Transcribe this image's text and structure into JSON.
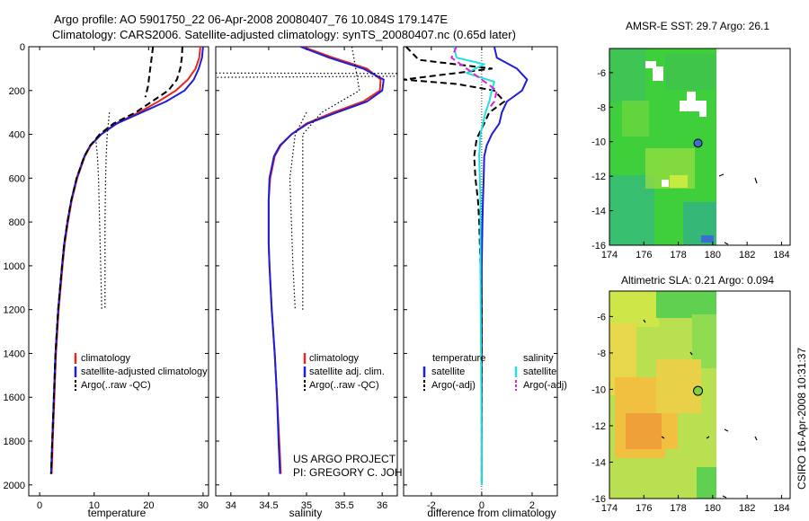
{
  "header": {
    "line1": "Argo profile: AO 5901750_22 06-Apr-2008 20080407_76 10.084S 179.147E",
    "line2": "Climatology: CARS2006. Satellite-adjusted climatology: synTS_20080407.nc (0.65d later)"
  },
  "credits": {
    "project": "US ARGO PROJECT",
    "pi": "PI: GREGORY C. JOHNSON",
    "stamp": "CSIRO 16-Apr-2008 10:31:37"
  },
  "colors": {
    "climatology": "#e8281e",
    "satellite": "#1e1ed8",
    "argo": "#000000",
    "sat_salinity": "#22e0e0",
    "argo_salinity_adj": "#e020e0"
  },
  "chart_data": [
    {
      "type": "line",
      "id": "temperature",
      "xlabel": "temperature",
      "xlim": [
        -2,
        31
      ],
      "ylim": [
        2050,
        0
      ],
      "xticks": [
        0,
        10,
        20,
        30
      ],
      "yticks": [
        0,
        200,
        400,
        600,
        800,
        1000,
        1200,
        1400,
        1600,
        1800,
        2000
      ],
      "depth": [
        0,
        50,
        100,
        150,
        200,
        250,
        300,
        350,
        400,
        450,
        500,
        600,
        700,
        800,
        900,
        1000,
        1200,
        1400,
        1600,
        1800,
        1950
      ],
      "legend": [
        "climatology",
        "satellite-adjusted climatology",
        "Argo(..raw -QC)"
      ],
      "series": [
        {
          "name": "climatology",
          "color": "red",
          "style": "solid",
          "values": [
            29.5,
            29.3,
            28.6,
            27.2,
            25.0,
            21.8,
            18.2,
            14.0,
            11.3,
            9.4,
            8.3,
            6.9,
            5.9,
            5.2,
            4.6,
            4.2,
            3.5,
            3.0,
            2.7,
            2.4,
            2.2
          ]
        },
        {
          "name": "satellite",
          "color": "blue",
          "style": "solid",
          "values": [
            30.0,
            29.8,
            29.2,
            28.3,
            26.6,
            23.2,
            18.7,
            14.2,
            11.3,
            9.3,
            8.2,
            6.8,
            5.8,
            5.1,
            4.5,
            4.1,
            3.4,
            2.9,
            2.6,
            2.3,
            2.1
          ]
        },
        {
          "name": "Argo(..raw -QC)",
          "color": "black",
          "style": "dash",
          "values": [
            26.2,
            26.1,
            25.8,
            25.2,
            23.6,
            20.6,
            17.6,
            13.6,
            11.0,
            9.3,
            8.2,
            6.8,
            5.8,
            5.1,
            4.5,
            4.1,
            3.4,
            2.9,
            2.6,
            2.3,
            2.1
          ]
        },
        {
          "name": "Argo upper segment",
          "color": "black",
          "style": "dash",
          "depth": [
            0,
            60,
            120,
            180,
            230
          ],
          "values": [
            20.8,
            20.5,
            20.2,
            19.9,
            19.4
          ]
        },
        {
          "name": "clim std bounds",
          "color": "black",
          "style": "dot",
          "depth": [
            300,
            400,
            500,
            600,
            800,
            1000,
            1200
          ],
          "values": [
            12.8,
            12.4,
            12.2,
            12.1,
            12.0,
            12.0,
            12.0
          ]
        },
        {
          "name": "clim std bounds low",
          "color": "black",
          "style": "dot",
          "depth": [
            420,
            500,
            600,
            800,
            1000,
            1200
          ],
          "values": [
            10.3,
            10.6,
            10.8,
            11.0,
            11.2,
            11.4
          ]
        }
      ]
    },
    {
      "type": "line",
      "id": "salinity",
      "xlabel": "salinity",
      "xlim": [
        33.8,
        36.2
      ],
      "ylim": [
        2050,
        0
      ],
      "xticks": [
        34,
        34.5,
        35,
        35.5,
        36
      ],
      "depth": [
        0,
        50,
        100,
        150,
        200,
        250,
        300,
        350,
        400,
        450,
        500,
        600,
        700,
        800,
        900,
        1000,
        1200,
        1400,
        1600,
        1800,
        1950
      ],
      "legend": [
        "climatology",
        "satellite adj. clim.",
        "Argo(..raw -QC)"
      ],
      "series": [
        {
          "name": "climatology",
          "color": "red",
          "style": "solid",
          "values": [
            34.95,
            35.35,
            35.8,
            35.98,
            35.97,
            35.75,
            35.35,
            35.0,
            34.8,
            34.66,
            34.58,
            34.52,
            34.5,
            34.5,
            34.5,
            34.51,
            34.54,
            34.58,
            34.61,
            34.64,
            34.66
          ]
        },
        {
          "name": "satellite",
          "color": "blue",
          "style": "solid",
          "values": [
            34.92,
            35.3,
            35.75,
            36.02,
            36.0,
            35.8,
            35.4,
            35.02,
            34.8,
            34.65,
            34.57,
            34.51,
            34.5,
            34.5,
            34.5,
            34.51,
            34.54,
            34.58,
            34.61,
            34.63,
            34.65
          ]
        },
        {
          "name": "Argo spike",
          "color": "black",
          "style": "dot",
          "depth": [
            120,
            122,
            135,
            140
          ],
          "values": [
            33.8,
            36.2,
            36.2,
            33.8
          ]
        },
        {
          "name": "clim std bounds",
          "color": "black",
          "style": "dot",
          "depth": [
            0,
            100,
            200,
            300,
            400,
            600,
            800,
            1000,
            1200
          ],
          "values": [
            35.6,
            35.65,
            35.7,
            35.2,
            34.95,
            34.95,
            34.95,
            34.95,
            34.95
          ]
        },
        {
          "name": "clim std bounds low",
          "color": "black",
          "style": "dot",
          "depth": [
            300,
            400,
            600,
            800,
            1000,
            1200
          ],
          "values": [
            35.0,
            34.85,
            34.78,
            34.8,
            34.82,
            34.85
          ]
        }
      ]
    },
    {
      "type": "line",
      "id": "difference",
      "xlabel": "difference from climatology",
      "xlim": [
        -3.1,
        3.0
      ],
      "ylim": [
        2050,
        0
      ],
      "xticks": [
        -2,
        0,
        2
      ],
      "legend_headers": [
        "temperature",
        "salinity"
      ],
      "legend": [
        "satellite",
        "Argo(-adj)",
        "satellite",
        "Argo(-adj)"
      ],
      "series": [
        {
          "name": "temperature satellite",
          "color": "blue",
          "style": "solid",
          "depth": [
            0,
            50,
            100,
            150,
            200,
            250,
            300,
            350,
            400,
            450,
            500,
            600,
            700,
            800,
            1000,
            1200,
            1400,
            1600,
            1800,
            2000
          ],
          "values": [
            0.5,
            0.6,
            1.4,
            1.8,
            1.6,
            1.0,
            0.8,
            0.7,
            0.4,
            0.2,
            0.1,
            0.08,
            0.05,
            0.03,
            0.0,
            0.0,
            0.0,
            0.0,
            0.0,
            0.0
          ]
        },
        {
          "name": "temperature Argo(-adj)",
          "color": "black",
          "style": "dash",
          "depth": [
            0,
            60,
            100,
            150,
            170,
            200,
            250,
            300,
            350,
            420,
            500,
            600,
            700,
            800,
            1000,
            1200,
            1400,
            1600,
            1800,
            2000
          ],
          "values": [
            -3.0,
            -2.5,
            0.4,
            -3.1,
            -1.0,
            0.5,
            0.9,
            0.3,
            0.1,
            -0.2,
            -0.3,
            -0.25,
            -0.15,
            -0.1,
            -0.05,
            0.0,
            0.0,
            0.0,
            0.0,
            0.0
          ]
        },
        {
          "name": "salinity satellite",
          "color": "cyan",
          "style": "solid",
          "depth": [
            0,
            50,
            80,
            120,
            160,
            200,
            250,
            300,
            350,
            400,
            500,
            700,
            1000,
            1400,
            1800,
            2000
          ],
          "values": [
            -1.1,
            -1.0,
            0.1,
            -0.6,
            0.5,
            0.4,
            0.3,
            0.15,
            0.05,
            -0.05,
            -0.1,
            -0.05,
            -0.05,
            -0.03,
            0.0,
            0.0
          ]
        },
        {
          "name": "salinity Argo(-adj)",
          "color": "magenta",
          "style": "dash",
          "depth": [
            0,
            50,
            200,
            250,
            280
          ],
          "values": [
            -1.0,
            -1.2,
            0.6,
            0.5,
            0.3
          ]
        }
      ]
    }
  ],
  "maps": [
    {
      "id": "sst",
      "title": "AMSR-E SST: 29.7 Argo: 26.1",
      "xlim": [
        174,
        184.5
      ],
      "ylim": [
        -16,
        -4.6
      ],
      "xticks": [
        174,
        176,
        178,
        180,
        182,
        184
      ],
      "yticks": [
        -6,
        -8,
        -10,
        -12,
        -14,
        -16
      ],
      "profile_location": {
        "lon": 179.147,
        "lat": -10.084
      },
      "data_extent_lon": [
        174,
        180
      ]
    },
    {
      "id": "sla",
      "title": "Altimetric SLA: 0.21 Argo: 0.094",
      "xlim": [
        174,
        184.5
      ],
      "ylim": [
        -16,
        -4.6
      ],
      "xticks": [
        174,
        176,
        178,
        180,
        182,
        184
      ],
      "yticks": [
        -6,
        -8,
        -10,
        -12,
        -14,
        -16
      ],
      "profile_location": {
        "lon": 179.147,
        "lat": -10.084
      },
      "data_extent_lon": [
        174,
        180
      ]
    }
  ]
}
